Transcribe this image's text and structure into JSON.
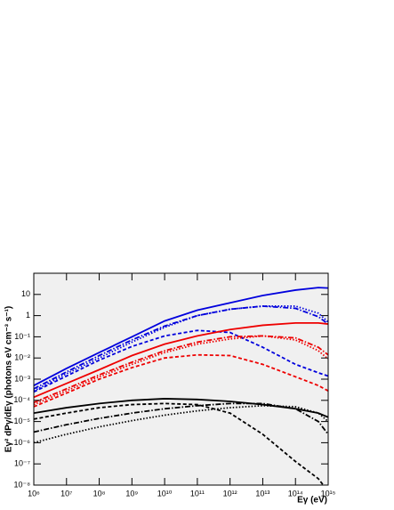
{
  "chart_data": {
    "type": "line",
    "x_label": "Eγ (eV)",
    "y_label": "Eγ² dPγ/dEγ (photons eV cm⁻³ s⁻¹)",
    "x_scale": "log",
    "y_scale": "log",
    "xlim": [
      1000000.0,
      1000000000000000.0
    ],
    "ylim": [
      1e-08,
      100
    ],
    "xticks": [
      {
        "value": 1000000.0,
        "label": "10⁶"
      },
      {
        "value": 10000000.0,
        "label": "10⁷"
      },
      {
        "value": 100000000.0,
        "label": "10⁸"
      },
      {
        "value": 1000000000.0,
        "label": "10⁹"
      },
      {
        "value": 10000000000.0,
        "label": "10¹⁰"
      },
      {
        "value": 100000000000.0,
        "label": "10¹¹"
      },
      {
        "value": 1000000000000.0,
        "label": "10¹²"
      },
      {
        "value": 10000000000000.0,
        "label": "10¹³"
      },
      {
        "value": 100000000000000.0,
        "label": "10¹⁴"
      },
      {
        "value": 1000000000000000.0,
        "label": "10¹⁵"
      }
    ],
    "yticks": [
      {
        "value": 1e-08,
        "label": "10⁻⁸"
      },
      {
        "value": 1e-07,
        "label": "10⁻⁷"
      },
      {
        "value": 1e-06,
        "label": "10⁻⁶"
      },
      {
        "value": 1e-05,
        "label": "10⁻⁵"
      },
      {
        "value": 0.0001,
        "label": "10⁻⁴"
      },
      {
        "value": 0.001,
        "label": "10⁻³"
      },
      {
        "value": 0.01,
        "label": "10⁻²"
      },
      {
        "value": 0.1,
        "label": "10⁻¹"
      },
      1,
      10
    ],
    "x": [
      1000000.0,
      10000000.0,
      100000000.0,
      1000000000.0,
      10000000000.0,
      100000000000.0,
      1000000000000.0,
      10000000000000.0,
      100000000000000.0,
      500000000000000.0,
      1000000000000000.0
    ],
    "series": [
      {
        "color": "#0000dd",
        "line_style": "solid",
        "values": [
          0.0005,
          0.0032,
          0.018,
          0.1,
          0.56,
          1.8,
          4.0,
          8.9,
          16,
          21,
          20
        ]
      },
      {
        "color": "#0000dd",
        "line_style": "dotted",
        "values": [
          0.00028,
          0.0018,
          0.01,
          0.056,
          0.28,
          1,
          2,
          2.8,
          2.8,
          1.3,
          0.5
        ]
      },
      {
        "color": "#0000dd",
        "line_style": "dashdot",
        "values": [
          0.00035,
          0.0022,
          0.013,
          0.071,
          0.32,
          1,
          2,
          2.8,
          2.2,
          0.89,
          0.4
        ]
      },
      {
        "color": "#0000dd",
        "line_style": "dashed",
        "values": [
          0.00025,
          0.0014,
          0.0079,
          0.035,
          0.11,
          0.2,
          0.16,
          0.032,
          0.005,
          0.002,
          0.0014
        ]
      },
      {
        "color": "#ee0000",
        "line_style": "solid",
        "values": [
          0.00014,
          0.00063,
          0.0028,
          0.013,
          0.045,
          0.11,
          0.22,
          0.35,
          0.45,
          0.45,
          0.4
        ]
      },
      {
        "color": "#ee0000",
        "line_style": "dotted",
        "values": [
          6.3e-05,
          0.00028,
          0.0013,
          0.005,
          0.018,
          0.045,
          0.079,
          0.11,
          0.071,
          0.022,
          0.0089
        ]
      },
      {
        "color": "#ee0000",
        "line_style": "dashdot",
        "values": [
          7.9e-05,
          0.00035,
          0.0016,
          0.0063,
          0.022,
          0.056,
          0.1,
          0.11,
          0.089,
          0.032,
          0.014
        ]
      },
      {
        "color": "#ee0000",
        "line_style": "dashed",
        "values": [
          5e-05,
          0.00022,
          0.001,
          0.0035,
          0.01,
          0.014,
          0.013,
          0.005,
          0.0013,
          0.0005,
          0.00028
        ]
      },
      {
        "color": "#000000",
        "line_style": "solid",
        "values": [
          2.5e-05,
          4.5e-05,
          7.1e-05,
          0.0001,
          0.00012,
          0.00011,
          8.9e-05,
          6.3e-05,
          4e-05,
          2.5e-05,
          1.6e-05
        ]
      },
      {
        "color": "#000000",
        "line_style": "dashed",
        "values": [
          1.3e-05,
          2.5e-05,
          4.5e-05,
          6.3e-05,
          7.1e-05,
          6.3e-05,
          2.5e-05,
          2.5e-06,
          1.3e-07,
          2e-08,
          5e-09
        ]
      },
      {
        "color": "#000000",
        "line_style": "dashdot",
        "values": [
          3.2e-06,
          7.1e-06,
          1.4e-05,
          2.5e-05,
          4e-05,
          5.6e-05,
          7.1e-05,
          7.1e-05,
          4e-05,
          1e-05,
          2.5e-06
        ]
      },
      {
        "color": "#000000",
        "line_style": "dotted",
        "values": [
          1e-06,
          2.5e-06,
          5.6e-06,
          1.1e-05,
          2e-05,
          3.2e-05,
          4.5e-05,
          5.6e-05,
          5e-05,
          2.5e-05,
          1e-05
        ]
      }
    ]
  }
}
